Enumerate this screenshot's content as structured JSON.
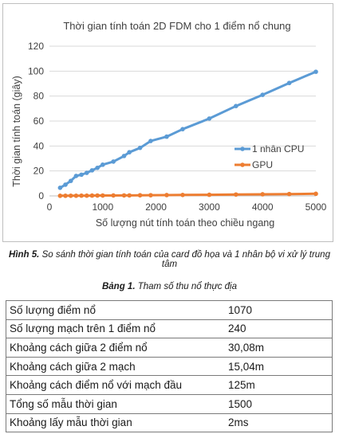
{
  "chart_data": {
    "type": "line",
    "title": "Thời gian tính toán 2D FDM cho 1 điểm nổ chung",
    "xlabel": "Số lượng nút tính toán theo chiều ngang",
    "ylabel": "Thời gian tính toán (giây)",
    "xlim": [
      0,
      5000
    ],
    "ylim": [
      0,
      120
    ],
    "xticks": [
      0,
      1000,
      2000,
      3000,
      4000,
      5000
    ],
    "yticks": [
      0,
      20,
      40,
      60,
      80,
      100,
      120
    ],
    "grid": "horizontal",
    "legend_position": "right",
    "series": [
      {
        "name": "1 nhân CPU",
        "color": "#5b9bd5",
        "x": [
          200,
          300,
          400,
          500,
          600,
          700,
          800,
          900,
          1000,
          1200,
          1400,
          1500,
          1700,
          1900,
          2200,
          2500,
          3000,
          3500,
          4000,
          4500,
          5000
        ],
        "y": [
          6.5,
          9,
          12,
          16,
          17,
          18.5,
          20.5,
          22.5,
          25,
          27.5,
          32,
          35,
          38.5,
          44,
          47.5,
          53.5,
          62,
          72,
          81,
          90.5,
          99.5
        ]
      },
      {
        "name": "GPU",
        "color": "#ed7d31",
        "x": [
          200,
          300,
          400,
          500,
          600,
          700,
          800,
          900,
          1000,
          1200,
          1400,
          1500,
          1700,
          1900,
          2200,
          2500,
          3000,
          3500,
          4000,
          4500,
          5000
        ],
        "y": [
          0.1,
          0.1,
          0.15,
          0.15,
          0.2,
          0.2,
          0.25,
          0.3,
          0.3,
          0.35,
          0.4,
          0.4,
          0.5,
          0.55,
          0.65,
          0.75,
          0.9,
          1.1,
          1.3,
          1.5,
          1.7
        ]
      }
    ]
  },
  "figure_caption": {
    "label": "Hình 5.",
    "text": " So sánh thời gian tính toán của card đồ họa và 1 nhân bộ vi xử lý trung tâm"
  },
  "table_caption": {
    "label": "Bảng 1.",
    "text": " Tham số thu nổ thực địa"
  },
  "table": {
    "rows": [
      {
        "name": "Số lượng điểm nổ",
        "value": "1070"
      },
      {
        "name": "Số lượng mạch trên 1 điểm nổ",
        "value": "240"
      },
      {
        "name": "Khoảng cách giữa 2 điểm nổ",
        "value": "30,08m"
      },
      {
        "name": "Khoảng cách giữa 2 mạch",
        "value": "15,04m"
      },
      {
        "name": "Khoảng cách điểm nổ với mạch đầu",
        "value": "125m"
      },
      {
        "name": "Tổng số mẫu thời gian",
        "value": "1500"
      },
      {
        "name": "Khoảng lấy mẫu thời gian",
        "value": "2ms"
      }
    ]
  }
}
